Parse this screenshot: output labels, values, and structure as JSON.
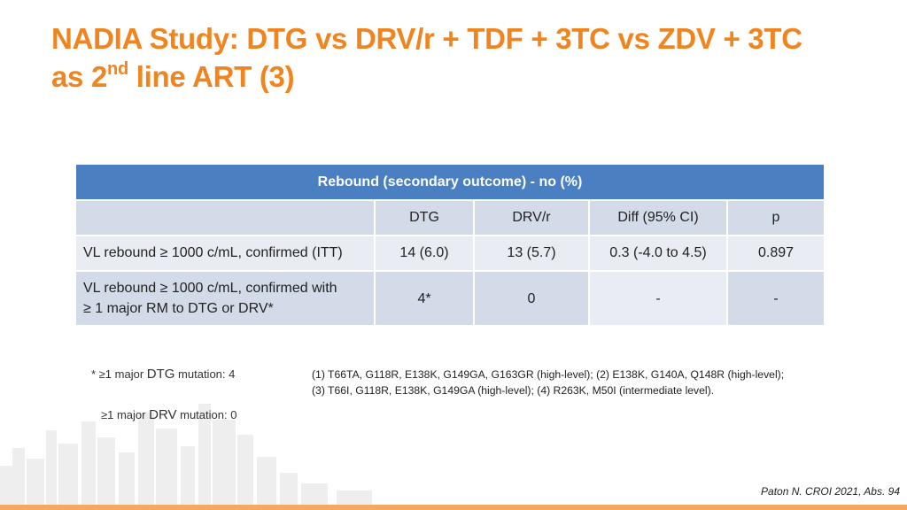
{
  "title": {
    "line1": "NADIA Study: DTG vs DRV/r + TDF + 3TC vs ZDV + 3TC",
    "line2_prefix": "as 2",
    "line2_sup": "nd",
    "line2_suffix": " line ART (3)"
  },
  "table": {
    "header": "Rebound (secondary outcome) - no (%)",
    "columns": [
      "",
      "DTG",
      "DRV/r",
      "Diff (95% CI)",
      "p"
    ],
    "rows": [
      {
        "label": "VL rebound ≥ 1000 c/mL, confirmed (ITT)",
        "dtg": "14 (6.0)",
        "drv": "13 (5.7)",
        "diff": "0.3 (-4.0 to 4.5)",
        "p": "0.897"
      },
      {
        "label_line1": "VL rebound ≥ 1000 c/mL, confirmed with",
        "label_line2": "≥ 1 major RM to DTG or DRV*",
        "dtg": "4*",
        "drv": "0",
        "diff": "-",
        "p": "-"
      }
    ]
  },
  "footnotes": {
    "dtg_prefix": "* ≥1 major ",
    "dtg_drug": "DTG",
    "dtg_suffix": " mutation: 4",
    "drv_prefix": "≥1 major ",
    "drv_drug": "DRV",
    "drv_suffix": " mutation: 0",
    "mutations_line1": "(1) T66TA, G118R, E138K, G149GA, G163GR (high-level); (2) E138K, G140A, Q148R (high-level);",
    "mutations_line2": "(3) T66I, G118R, E138K, G149GA (high-level); (4) R263K, M50I (intermediate level)."
  },
  "citation": "Paton N. CROI 2021, Abs. 94",
  "colors": {
    "title": "#f0841e",
    "table_header": "#4a7fc1",
    "row_dark": "#d4dbe8",
    "row_light": "#e9ecf3"
  }
}
